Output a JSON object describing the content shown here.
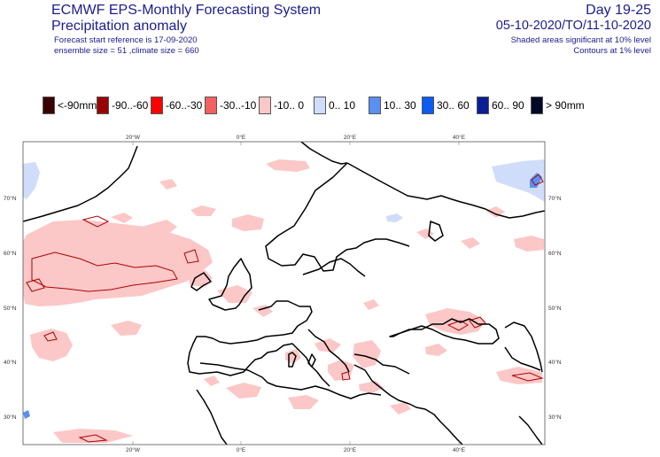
{
  "header": {
    "title": "ECMWF EPS-Monthly Forecasting System",
    "subtitle": "Precipitation anomaly",
    "forecast_ref": "Forecast start reference is 17-09-2020",
    "ensemble": "ensemble size = 51  ,climate size = 660",
    "day_range": "Day 19-25",
    "date_range": "05-10-2020/TO/11-10-2020",
    "shaded_note": "Shaded areas significant at 10% level",
    "contour_note": "Contours at 1% level"
  },
  "legend": [
    {
      "label": "<-90mm",
      "color": "#3a0000"
    },
    {
      "label": "-90..-60",
      "color": "#990000"
    },
    {
      "label": "-60..-30",
      "color": "#ff0000"
    },
    {
      "label": "-30..-10",
      "color": "#f26060"
    },
    {
      "label": "-10..  0",
      "color": "#fcc7c7"
    },
    {
      "label": "0..  10",
      "color": "#cfdcfa"
    },
    {
      "label": "10..  30",
      "color": "#5b8ff2"
    },
    {
      "label": "30..  60",
      "color": "#0a5cf2"
    },
    {
      "label": "60..  90",
      "color": "#0a1e96"
    },
    {
      "label": ">  90mm",
      "color": "#000a28"
    }
  ],
  "map": {
    "lon_labels": [
      "20°W",
      "0°E",
      "20°E",
      "40°E"
    ],
    "lat_labels": [
      "70°N",
      "60°N",
      "50°N",
      "40°N",
      "30°N"
    ]
  }
}
